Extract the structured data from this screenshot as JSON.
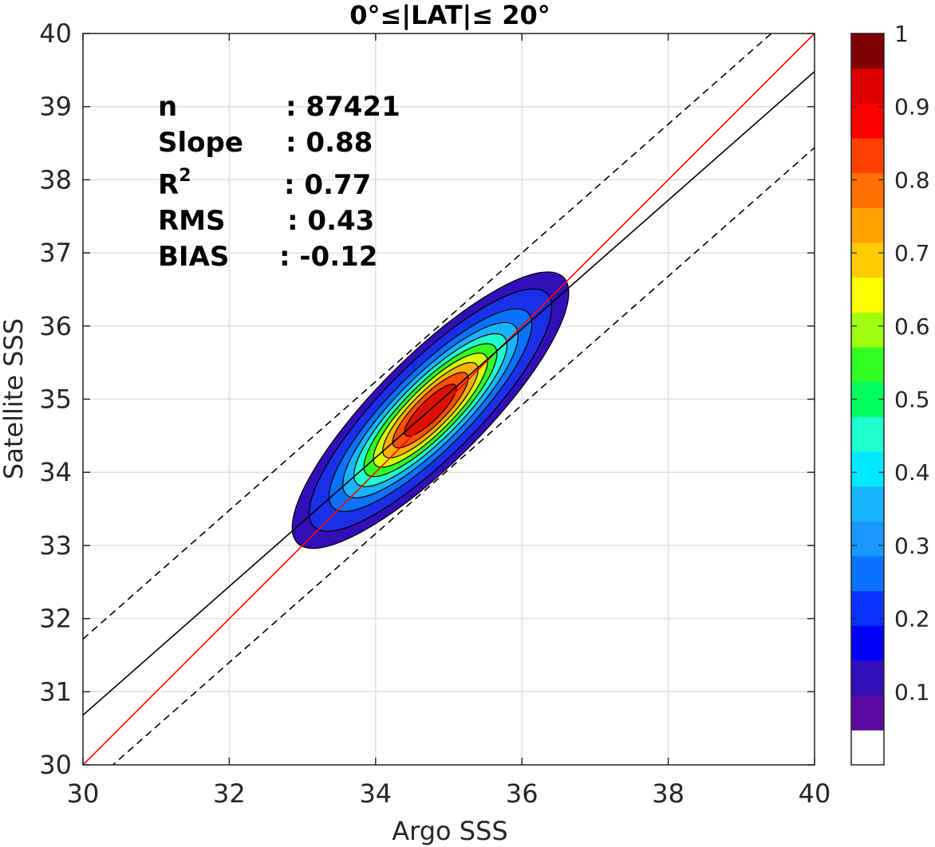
{
  "chart_data": {
    "type": "contour",
    "title": "0°≤|LAT|≤ 20°",
    "xlabel": "Argo SSS",
    "ylabel": "Satellite SSS",
    "xlim": [
      30,
      40
    ],
    "ylim": [
      30,
      40
    ],
    "xticks": [
      30,
      32,
      34,
      36,
      38,
      40
    ],
    "yticks": [
      30,
      31,
      32,
      33,
      34,
      35,
      36,
      37,
      38,
      39,
      40
    ],
    "grid": true,
    "stats": [
      {
        "label": "n",
        "value": ": 87421"
      },
      {
        "label": "Slope",
        "value": ": 0.88"
      },
      {
        "label": "R",
        "sup": "2",
        "value": ": 0.77"
      },
      {
        "label": "RMS",
        "value": ": 0.43"
      },
      {
        "label": "BIAS",
        "value": ": -0.12"
      }
    ],
    "density": {
      "center": [
        34.75,
        34.85
      ],
      "major_axis_slope": 1.0,
      "sigma_major": 1.05,
      "sigma_minor": 0.3,
      "levels": [
        0.05,
        0.1,
        0.2,
        0.3,
        0.4,
        0.5,
        0.6,
        0.7,
        0.8,
        0.9
      ],
      "level_colors": [
        "#3210b8",
        "#1a30e8",
        "#0a72ff",
        "#18b4ff",
        "#20ffd0",
        "#33ff22",
        "#d8ff00",
        "#ffb000",
        "#ff5000",
        "#e01000"
      ]
    },
    "lines": [
      {
        "name": "one-to-one",
        "color": "#ff0000",
        "style": "solid",
        "points": [
          [
            30,
            30
          ],
          [
            40,
            40
          ]
        ]
      },
      {
        "name": "regression",
        "color": "#000000",
        "style": "solid",
        "points": [
          [
            30,
            30.68
          ],
          [
            40,
            39.48
          ]
        ]
      },
      {
        "name": "upper-bound",
        "color": "#000000",
        "style": "dashed",
        "points": [
          [
            30,
            31.72
          ],
          [
            40,
            40.52
          ]
        ]
      },
      {
        "name": "lower-bound",
        "color": "#000000",
        "style": "dashed",
        "points": [
          [
            30,
            29.64
          ],
          [
            40,
            38.44
          ]
        ]
      }
    ],
    "colorbar": {
      "range": [
        0,
        1
      ],
      "tick_labels": [
        "0.1",
        "0.2",
        "0.3",
        "0.4",
        "0.5",
        "0.6",
        "0.7",
        "0.8",
        "0.9",
        "1"
      ],
      "tick_values": [
        0.1,
        0.2,
        0.3,
        0.4,
        0.5,
        0.6,
        0.7,
        0.8,
        0.9,
        1.0
      ],
      "colors": [
        "#ffffff",
        "#5a0aa0",
        "#3210b8",
        "#0000ff",
        "#0a30ff",
        "#0a72ff",
        "#1a96ff",
        "#18b4ff",
        "#00eaff",
        "#20ffd0",
        "#00ff60",
        "#33ff22",
        "#a0ff10",
        "#ffff00",
        "#ffcc00",
        "#ffa000",
        "#ff7000",
        "#ff4000",
        "#ff0000",
        "#dd0000",
        "#800000"
      ]
    }
  }
}
